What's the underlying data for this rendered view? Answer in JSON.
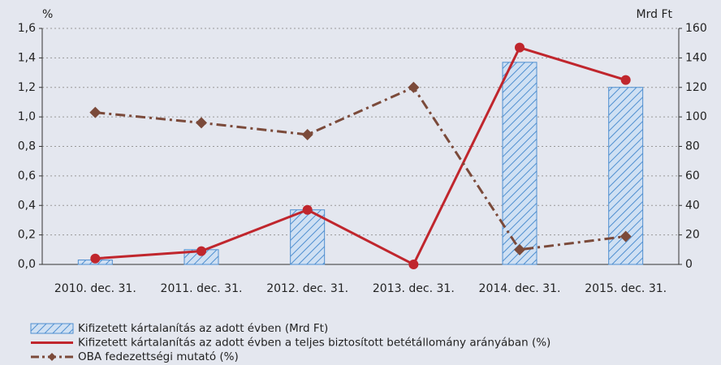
{
  "chart_data": {
    "type": "bar",
    "y_label": "%",
    "y2_label": "Mrd Ft",
    "categories": [
      "2010. dec. 31.",
      "2011. dec. 31.",
      "2012. dec. 31.",
      "2013. dec. 31.",
      "2014. dec. 31.",
      "2015. dec. 31."
    ],
    "series": [
      {
        "name": "Kifizetett kártalanítás az adott évben (Mrd Ft)",
        "type": "bar",
        "axis": "y2",
        "color": "#4f8fd0",
        "values": [
          3,
          10,
          37,
          0,
          137,
          120
        ]
      },
      {
        "name": "Kifizetett kártalanítás az adott évben a teljes biztosított betétállomány arányában (%)",
        "type": "line",
        "color": "#c0262d",
        "values": [
          0.04,
          0.09,
          0.37,
          0,
          1.47,
          1.25
        ]
      },
      {
        "name": "OBA fedezettségi mutató (%)",
        "type": "line",
        "dashed": true,
        "marker": "diamond",
        "color": "#7b4a3a",
        "values": [
          1.03,
          0.96,
          0.88,
          1.2,
          0.1,
          0.19
        ]
      }
    ],
    "ylim": [
      0,
      1.6
    ],
    "yticks": [
      {
        "value": 0,
        "label": "0,0"
      },
      {
        "value": 0.2,
        "label": "0,2"
      },
      {
        "value": 0.4,
        "label": "0,4"
      },
      {
        "value": 0.6,
        "label": "0,6"
      },
      {
        "value": 0.8,
        "label": "0,8"
      },
      {
        "value": 1,
        "label": "1,0"
      },
      {
        "value": 1.2,
        "label": "1,2"
      },
      {
        "value": 1.4,
        "label": "1,4"
      },
      {
        "value": 1.6,
        "label": "1,6"
      }
    ],
    "y2lim": [
      0,
      160
    ],
    "y2ticks": [
      0,
      20,
      40,
      60,
      80,
      100,
      120,
      140,
      160
    ],
    "grid": true
  }
}
